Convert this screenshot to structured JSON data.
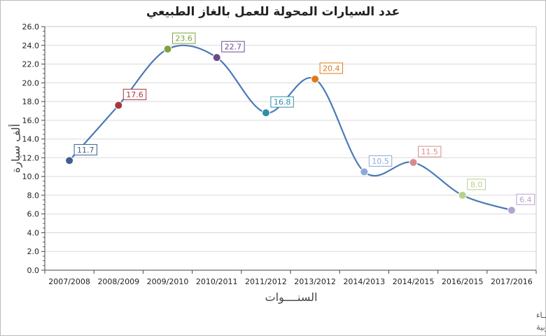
{
  "chart_data": {
    "type": "line",
    "title": "عدد السيارات المحولة للعمل بالغاز الطبيعي",
    "xlabel": "السنــــوات",
    "ylabel": "ألف سيارة",
    "ylim": [
      0,
      26
    ],
    "ytick_step": 2,
    "grid": true,
    "categories": [
      "2007/2008",
      "2008/2009",
      "2009/2010",
      "2010/2011",
      "2011/2012",
      "2013/2012",
      "2014/2013",
      "2014/2015",
      "2016/2015",
      "2017/2016"
    ],
    "values": [
      11.7,
      17.6,
      23.6,
      22.7,
      16.8,
      20.4,
      10.5,
      11.5,
      8.0,
      6.4
    ],
    "value_labels": [
      "11.7",
      "17.6",
      "23.6",
      "22.7",
      "16.8",
      "20.4",
      "10.5",
      "11.5",
      "8.0",
      "6.4"
    ],
    "line_color": "#4a7ab5",
    "point_colors": [
      "#3d5f8f",
      "#a33a3a",
      "#7ea23a",
      "#6a4a8a",
      "#2f8fa8",
      "#e07a1a",
      "#8ea9d8",
      "#d88a8a",
      "#b8d08a",
      "#b7a3cf"
    ]
  },
  "footnotes": {
    "line1": "حقوق الملكية للجهـــاز المركزي للتعبئة العــامة والأحصـــاء",
    "line2": "المصدر الأســاسي للأحصاءات الرسمية لجمهورية مصر العربية"
  }
}
